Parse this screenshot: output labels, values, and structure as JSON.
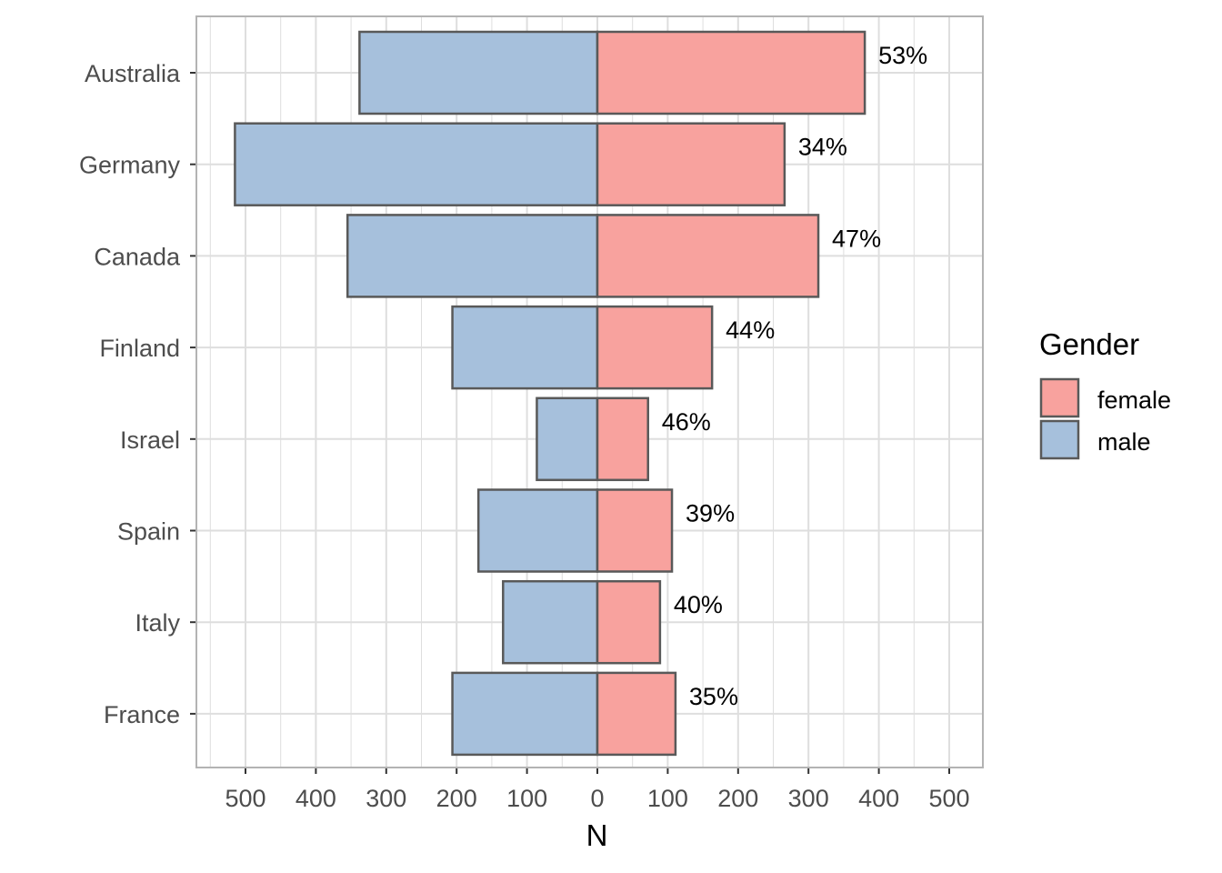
{
  "chart_data": {
    "type": "bar",
    "orientation": "horizontal-diverging",
    "categories": [
      "Australia",
      "Germany",
      "Canada",
      "Finland",
      "Israel",
      "Spain",
      "Italy",
      "France"
    ],
    "series": [
      {
        "name": "female",
        "color": "#f8a29e",
        "values": [
          380,
          266,
          314,
          163,
          72,
          106,
          89,
          111
        ],
        "labels": [
          "53%",
          "34%",
          "47%",
          "44%",
          "46%",
          "39%",
          "40%",
          "35%"
        ]
      },
      {
        "name": "male",
        "color": "#a6c0dc",
        "values": [
          338,
          515,
          355,
          206,
          86,
          169,
          134,
          206
        ]
      }
    ],
    "xlabel": "N",
    "xlim": [
      -570,
      550
    ],
    "xticks": [
      -500,
      -400,
      -300,
      -200,
      -100,
      0,
      100,
      200,
      300,
      400,
      500
    ],
    "xtick_labels": [
      "500",
      "400",
      "300",
      "200",
      "100",
      "0",
      "100",
      "200",
      "300",
      "400",
      "500"
    ],
    "grid": true,
    "legend": {
      "title": "Gender",
      "placement": "right",
      "entries": [
        "female",
        "male"
      ]
    },
    "bar_outline_color": "#595959",
    "grid_color": "#dedede",
    "panel_border_color": "#b3b3b3"
  }
}
